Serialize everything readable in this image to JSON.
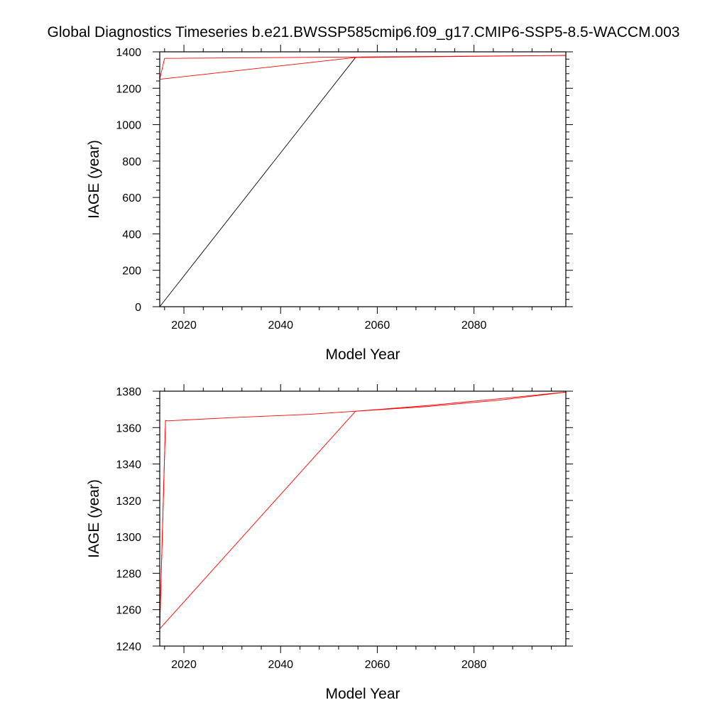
{
  "page": {
    "title": "Global Diagnostics Timeseries b.e21.BWSSP585cmip6.f09_g17.CMIP6-SSP5-8.5-WACCM.003"
  },
  "colors": {
    "red": "#ff0000",
    "black": "#000000"
  },
  "chart_data": [
    {
      "type": "line",
      "title": "",
      "xlabel": "Model Year",
      "ylabel": "IAGE (year)",
      "xlim": [
        2015,
        2099
      ],
      "ylim": [
        0,
        1400
      ],
      "x_ticks": [
        2020,
        2040,
        2060,
        2080
      ],
      "x_tick_labels": [
        "2020",
        "2040",
        "2060",
        "2080"
      ],
      "y_ticks": [
        0,
        200,
        400,
        600,
        800,
        1000,
        1200,
        1400
      ],
      "y_tick_labels": [
        "0",
        "200",
        "400",
        "600",
        "800",
        "1000",
        "1200",
        "1400"
      ],
      "grid": false,
      "legend": "none",
      "series": [
        {
          "color": "#000000",
          "x": [
            2015,
            2055.5
          ],
          "y": [
            0,
            1369
          ]
        },
        {
          "color": "#ff0000",
          "x": [
            2015,
            2016,
            2099,
            2016,
            2015,
            2015.3,
            2055.5,
            2099
          ],
          "y": [
            1250,
            1364,
            1380,
            1364,
            1250,
            1250,
            1369,
            1380
          ]
        }
      ]
    },
    {
      "type": "line",
      "title": "",
      "xlabel": "Model Year",
      "ylabel": "IAGE (year)",
      "xlim": [
        2015,
        2099
      ],
      "ylim": [
        1240,
        1380
      ],
      "x_ticks": [
        2020,
        2040,
        2060,
        2080
      ],
      "x_tick_labels": [
        "2020",
        "2040",
        "2060",
        "2080"
      ],
      "y_ticks": [
        1240,
        1260,
        1280,
        1300,
        1320,
        1340,
        1360,
        1380
      ],
      "y_tick_labels": [
        "1240",
        "1260",
        "1280",
        "1300",
        "1320",
        "1340",
        "1360",
        "1380"
      ],
      "grid": false,
      "legend": "none",
      "series": [
        {
          "color": "#ff0000",
          "x": [
            2015,
            2016.2,
            2016.6,
            2030,
            2046,
            2055.5,
            2070,
            2085,
            2099
          ],
          "y": [
            1250,
            1364,
            1363.7,
            1365.5,
            1367.3,
            1369,
            1371.5,
            1375,
            1379.5
          ]
        },
        {
          "color": "#ff0000",
          "x": [
            2015,
            2055.5,
            2070,
            2085,
            2099
          ],
          "y": [
            1249.5,
            1369,
            1372,
            1375.8,
            1379.5
          ]
        },
        {
          "color": "#ff0000",
          "x": [
            2015,
            2015.2,
            2016.2
          ],
          "y": [
            1249.5,
            1270,
            1364
          ]
        }
      ]
    }
  ]
}
